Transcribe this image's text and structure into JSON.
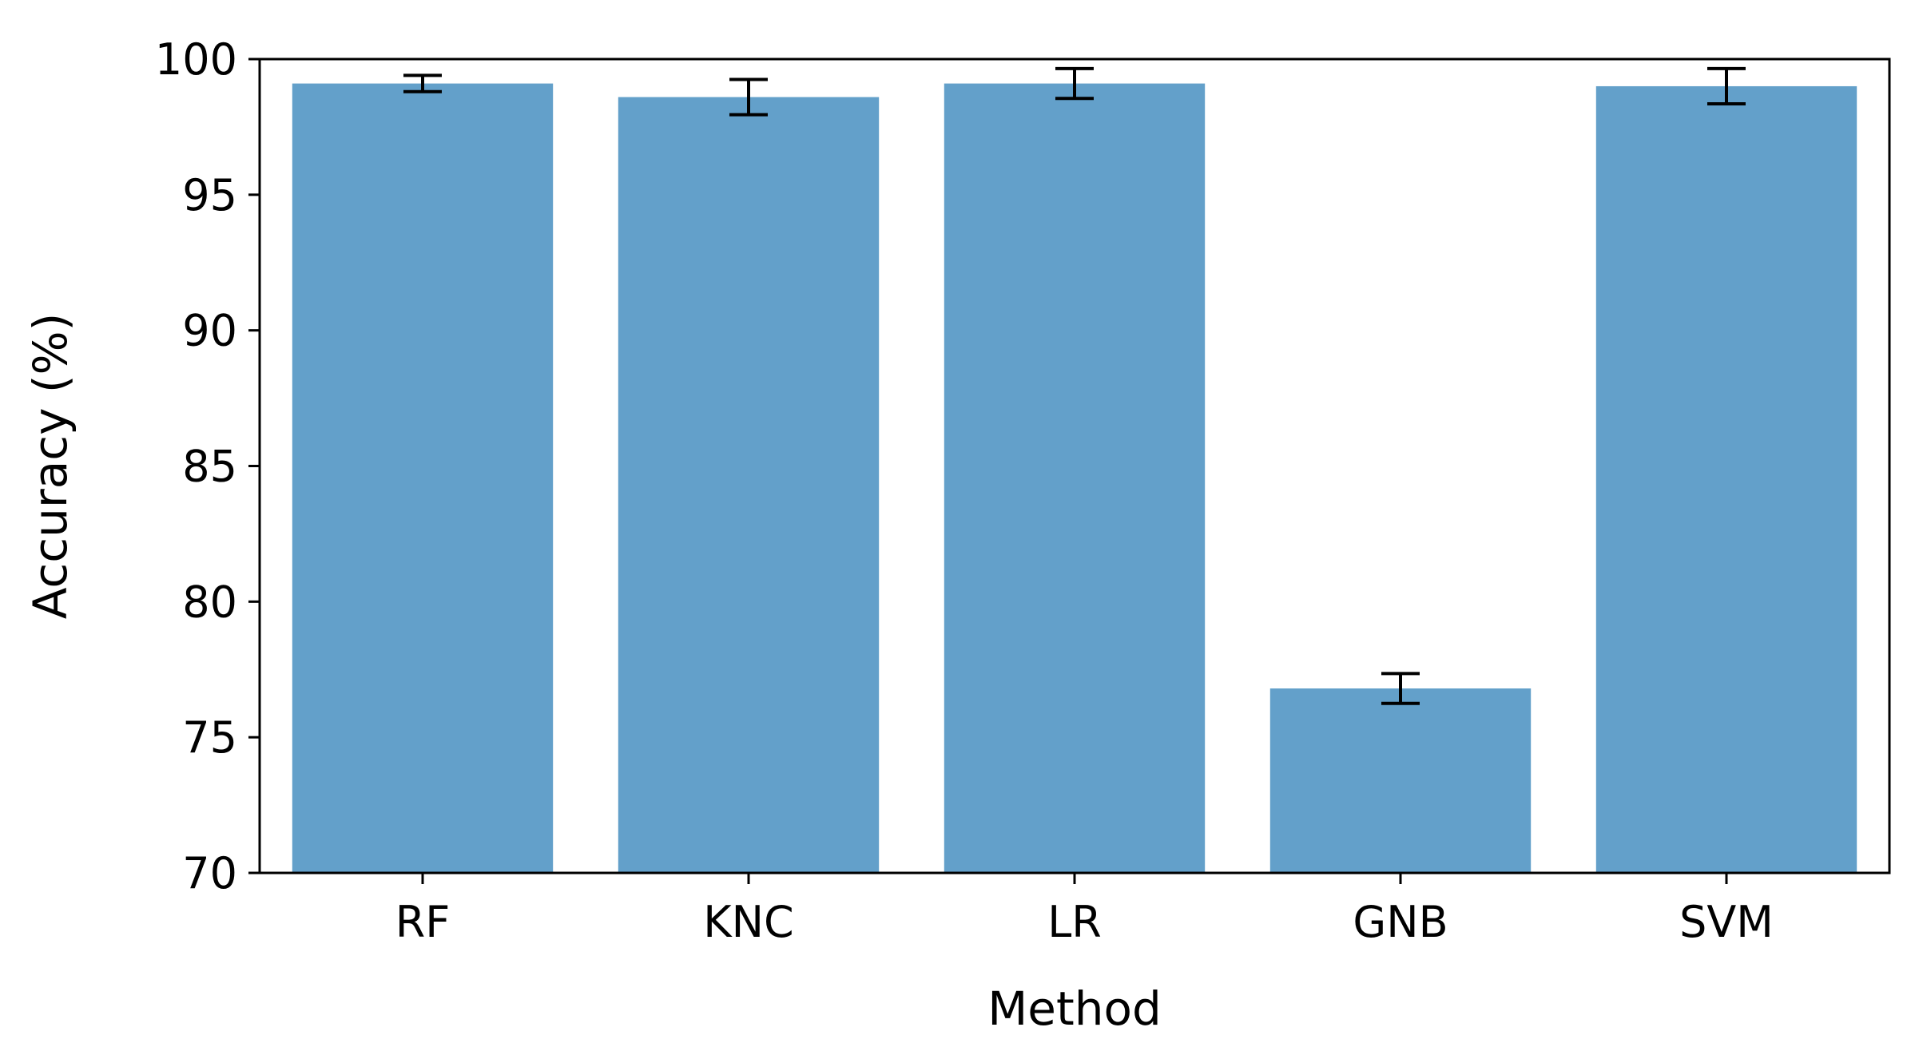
{
  "chart_data": {
    "type": "bar",
    "categories": [
      "RF",
      "KNC",
      "LR",
      "GNB",
      "SVM"
    ],
    "values": [
      99.1,
      98.6,
      99.1,
      76.8,
      99.0
    ],
    "errors": [
      0.3,
      0.65,
      0.55,
      0.55,
      0.65
    ],
    "xlabel": "Method",
    "ylabel": "Accuracy (%)",
    "ylim": [
      70,
      100
    ],
    "yticks": [
      70,
      75,
      80,
      85,
      90,
      95,
      100
    ],
    "bar_color": "#63a0ca",
    "error_color": "#000000",
    "grid": false
  }
}
